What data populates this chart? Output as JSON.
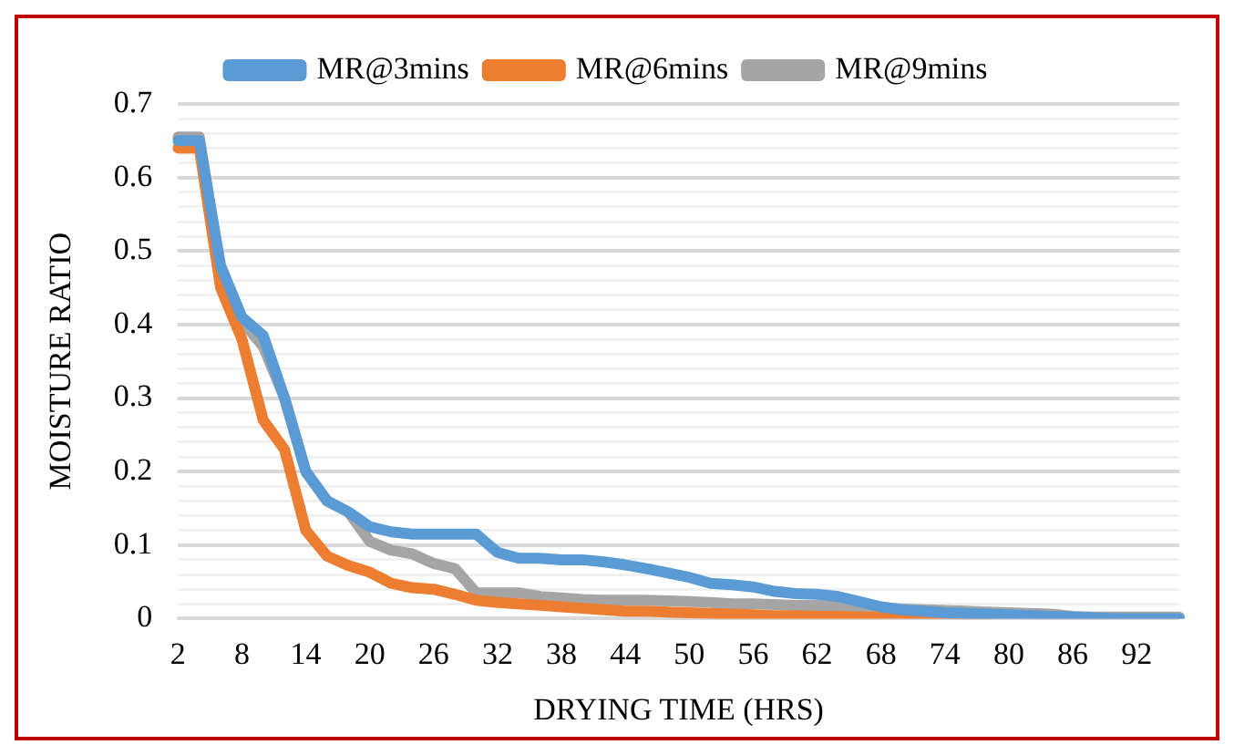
{
  "chart_data": {
    "type": "line",
    "xlabel": "DRYING TIME (HRS)",
    "ylabel": "MOISTURE RATIO",
    "categories": [
      "2",
      null,
      null,
      "8",
      null,
      null,
      "14",
      null,
      null,
      "20",
      null,
      null,
      "26",
      null,
      null,
      "32",
      null,
      null,
      "38",
      null,
      null,
      "44",
      null,
      null,
      "50",
      null,
      null,
      "56",
      null,
      null,
      "62",
      null,
      null,
      "68",
      null,
      null,
      "74",
      null,
      null,
      "80",
      null,
      null,
      "86",
      null,
      null,
      "92",
      null,
      null
    ],
    "series": [
      {
        "name": "MR@3mins",
        "color": "#5b9bd5",
        "values": [
          0.65,
          0.65,
          0.48,
          0.41,
          0.385,
          0.3,
          0.2,
          0.16,
          0.145,
          0.125,
          0.118,
          0.115,
          0.115,
          0.115,
          0.115,
          0.09,
          0.082,
          0.082,
          0.08,
          0.08,
          0.077,
          0.073,
          0.068,
          0.062,
          0.056,
          0.048,
          0.046,
          0.043,
          0.037,
          0.034,
          0.033,
          0.03,
          0.023,
          0.016,
          0.012,
          0.01,
          0.008,
          0.007,
          0.006,
          0.005,
          0.004,
          0.003,
          0.002,
          0.001,
          0,
          0,
          0,
          0
        ]
      },
      {
        "name": "MR@6mins",
        "color": "#ed7d31",
        "values": [
          0.64,
          0.64,
          0.45,
          0.38,
          0.27,
          0.23,
          0.12,
          0.085,
          0.072,
          0.063,
          0.048,
          0.042,
          0.04,
          0.033,
          0.025,
          0.022,
          0.02,
          0.018,
          0.016,
          0.014,
          0.012,
          0.01,
          0.01,
          0.009,
          0.008,
          0.007,
          0.006,
          0.005,
          0.004,
          0.004,
          0.003,
          0.003,
          0.002,
          0.002,
          0.002,
          0,
          0,
          0,
          0,
          null,
          null,
          null,
          null,
          null,
          null,
          null,
          null,
          null
        ]
      },
      {
        "name": "MR@9mins",
        "color": "#a5a5a5",
        "values": [
          0.655,
          0.655,
          0.47,
          0.405,
          0.37,
          0.3,
          0.2,
          0.16,
          0.145,
          0.105,
          0.093,
          0.088,
          0.075,
          0.068,
          0.035,
          0.035,
          0.035,
          0.03,
          0.028,
          0.026,
          0.025,
          0.025,
          0.025,
          0.024,
          0.023,
          0.022,
          0.02,
          0.02,
          0.019,
          0.018,
          0.018,
          0.017,
          0.016,
          0.014,
          0.013,
          0.012,
          0.011,
          0.01,
          0.009,
          0.008,
          0.007,
          0.006,
          0.003,
          0.002,
          0.002,
          0.002,
          0.002,
          0.002
        ]
      }
    ],
    "ylim": [
      0,
      0.7
    ],
    "yticks": [
      0,
      {
        "value": 0.02,
        "label": null
      },
      {
        "value": 0.04,
        "label": null
      },
      {
        "value": 0.06,
        "label": null
      },
      {
        "value": 0.08,
        "label": null
      },
      0.1,
      {
        "value": 0.12,
        "label": null
      },
      {
        "value": 0.14,
        "label": null
      },
      {
        "value": 0.16,
        "label": null
      },
      {
        "value": 0.18,
        "label": null
      },
      0.2,
      {
        "value": 0.22,
        "label": null
      },
      {
        "value": 0.24,
        "label": null
      },
      {
        "value": 0.26,
        "label": null
      },
      {
        "value": 0.28,
        "label": null
      },
      0.3,
      {
        "value": 0.32,
        "label": null
      },
      {
        "value": 0.34,
        "label": null
      },
      {
        "value": 0.36,
        "label": null
      },
      {
        "value": 0.38,
        "label": null
      },
      0.4,
      {
        "value": 0.42,
        "label": null
      },
      {
        "value": 0.44,
        "label": null
      },
      {
        "value": 0.46,
        "label": null
      },
      {
        "value": 0.48,
        "label": null
      },
      0.5,
      {
        "value": 0.52,
        "label": null
      },
      {
        "value": 0.54,
        "label": null
      },
      {
        "value": 0.56,
        "label": null
      },
      {
        "value": 0.58,
        "label": null
      },
      0.6,
      {
        "value": 0.62,
        "label": null
      },
      {
        "value": 0.64,
        "label": null
      },
      {
        "value": 0.66,
        "label": null
      },
      {
        "value": 0.68,
        "label": null
      },
      0.7
    ],
    "grid": "y",
    "legend": "top",
    "marker": "none",
    "line_style": "solid"
  }
}
